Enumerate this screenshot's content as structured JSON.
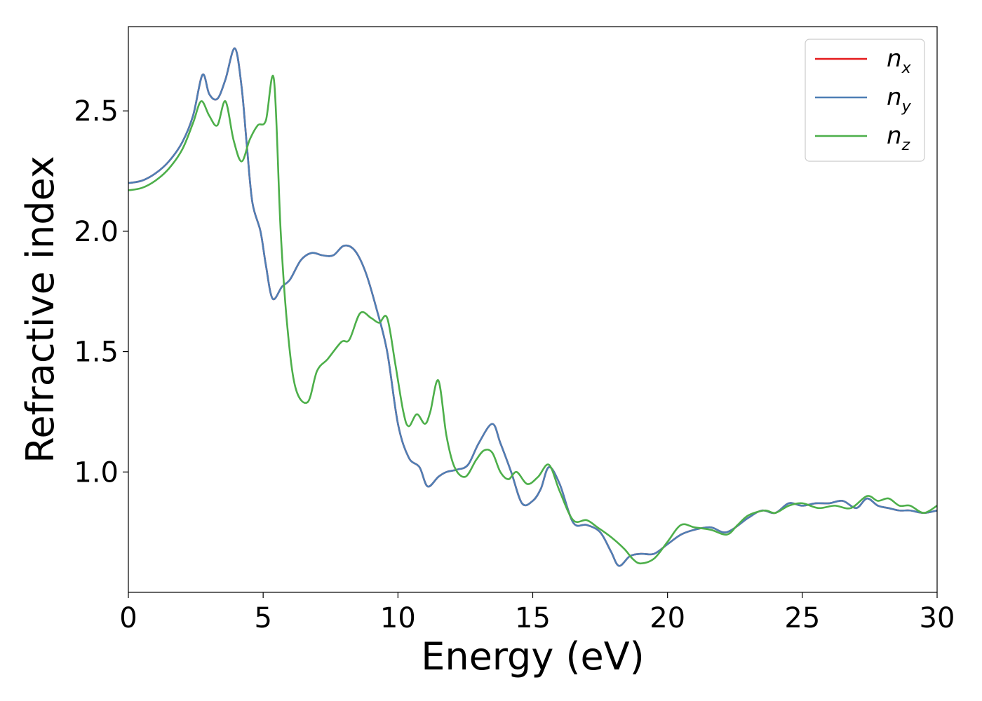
{
  "chart_data": {
    "type": "line",
    "title": "",
    "xlabel": "Energy (eV)",
    "ylabel": "Refractive index",
    "xlim": [
      0,
      30
    ],
    "ylim": [
      0.5,
      2.85
    ],
    "xticks": [
      0,
      5,
      10,
      15,
      20,
      25,
      30
    ],
    "xtick_labels": [
      "0",
      "5",
      "10",
      "15",
      "20",
      "25",
      "30"
    ],
    "yticks": [
      1.0,
      1.5,
      2.0,
      2.5
    ],
    "ytick_labels": [
      "1.0",
      "1.5",
      "2.0",
      "2.5"
    ],
    "grid": false,
    "legend_position": "top-right",
    "series": [
      {
        "name": "n_x",
        "label_main": "n",
        "label_sub": "x",
        "color": "#e41a1c",
        "x": [
          0,
          0.5,
          1.0,
          1.5,
          2.0,
          2.4,
          2.75,
          3.0,
          3.3,
          3.6,
          3.95,
          4.2,
          4.4,
          4.6,
          4.9,
          5.1,
          5.35,
          5.7,
          6.0,
          6.4,
          6.8,
          7.2,
          7.6,
          8.0,
          8.4,
          8.8,
          9.2,
          9.6,
          10.0,
          10.4,
          10.8,
          11.1,
          11.5,
          11.8,
          12.2,
          12.6,
          13.0,
          13.5,
          13.8,
          14.2,
          14.6,
          15.0,
          15.3,
          15.6,
          16.0,
          16.5,
          17.0,
          17.5,
          17.9,
          18.2,
          18.6,
          19.0,
          19.5,
          20.0,
          20.5,
          21.0,
          21.6,
          22.2,
          23.0,
          23.5,
          24.0,
          24.5,
          25.0,
          25.5,
          26.0,
          26.5,
          27.0,
          27.4,
          27.8,
          28.2,
          28.6,
          29.0,
          29.5,
          30.0
        ],
        "y": [
          2.2,
          2.21,
          2.24,
          2.29,
          2.37,
          2.48,
          2.65,
          2.57,
          2.55,
          2.63,
          2.76,
          2.6,
          2.35,
          2.12,
          2.0,
          1.86,
          1.72,
          1.77,
          1.8,
          1.88,
          1.91,
          1.9,
          1.9,
          1.94,
          1.92,
          1.83,
          1.68,
          1.5,
          1.2,
          1.06,
          1.02,
          0.94,
          0.98,
          1.0,
          1.01,
          1.03,
          1.12,
          1.2,
          1.12,
          1.0,
          0.87,
          0.88,
          0.93,
          1.02,
          0.95,
          0.79,
          0.78,
          0.75,
          0.67,
          0.61,
          0.65,
          0.66,
          0.66,
          0.7,
          0.74,
          0.76,
          0.77,
          0.75,
          0.81,
          0.84,
          0.83,
          0.87,
          0.86,
          0.87,
          0.87,
          0.88,
          0.85,
          0.89,
          0.86,
          0.85,
          0.84,
          0.84,
          0.83,
          0.84
        ]
      },
      {
        "name": "n_y",
        "label_main": "n",
        "label_sub": "y",
        "color": "#4e7fb5",
        "x": [
          0,
          0.5,
          1.0,
          1.5,
          2.0,
          2.4,
          2.75,
          3.0,
          3.3,
          3.6,
          3.95,
          4.2,
          4.4,
          4.6,
          4.9,
          5.1,
          5.35,
          5.7,
          6.0,
          6.4,
          6.8,
          7.2,
          7.6,
          8.0,
          8.4,
          8.8,
          9.2,
          9.6,
          10.0,
          10.4,
          10.8,
          11.1,
          11.5,
          11.8,
          12.2,
          12.6,
          13.0,
          13.5,
          13.8,
          14.2,
          14.6,
          15.0,
          15.3,
          15.6,
          16.0,
          16.5,
          17.0,
          17.5,
          17.9,
          18.2,
          18.6,
          19.0,
          19.5,
          20.0,
          20.5,
          21.0,
          21.6,
          22.2,
          23.0,
          23.5,
          24.0,
          24.5,
          25.0,
          25.5,
          26.0,
          26.5,
          27.0,
          27.4,
          27.8,
          28.2,
          28.6,
          29.0,
          29.5,
          30.0
        ],
        "y": [
          2.2,
          2.21,
          2.24,
          2.29,
          2.37,
          2.48,
          2.65,
          2.57,
          2.55,
          2.63,
          2.76,
          2.6,
          2.35,
          2.12,
          2.0,
          1.86,
          1.72,
          1.77,
          1.8,
          1.88,
          1.91,
          1.9,
          1.9,
          1.94,
          1.92,
          1.83,
          1.68,
          1.5,
          1.2,
          1.06,
          1.02,
          0.94,
          0.98,
          1.0,
          1.01,
          1.03,
          1.12,
          1.2,
          1.12,
          1.0,
          0.87,
          0.88,
          0.93,
          1.02,
          0.95,
          0.79,
          0.78,
          0.75,
          0.67,
          0.61,
          0.65,
          0.66,
          0.66,
          0.7,
          0.74,
          0.76,
          0.77,
          0.75,
          0.81,
          0.84,
          0.83,
          0.87,
          0.86,
          0.87,
          0.87,
          0.88,
          0.85,
          0.89,
          0.86,
          0.85,
          0.84,
          0.84,
          0.83,
          0.84
        ]
      },
      {
        "name": "n_z",
        "label_main": "n",
        "label_sub": "z",
        "color": "#4daf4a",
        "x": [
          0,
          0.5,
          1.0,
          1.5,
          2.0,
          2.4,
          2.7,
          3.0,
          3.3,
          3.6,
          3.9,
          4.2,
          4.5,
          4.8,
          5.1,
          5.4,
          5.65,
          5.9,
          6.2,
          6.65,
          7.0,
          7.4,
          7.9,
          8.2,
          8.6,
          9.0,
          9.3,
          9.6,
          9.9,
          10.2,
          10.4,
          10.7,
          11.0,
          11.2,
          11.5,
          11.8,
          12.1,
          12.5,
          12.9,
          13.2,
          13.5,
          13.8,
          14.1,
          14.4,
          14.8,
          15.2,
          15.6,
          16.0,
          16.5,
          17.0,
          17.4,
          17.9,
          18.4,
          18.7,
          19.0,
          19.5,
          20.0,
          20.5,
          21.0,
          21.6,
          22.2,
          22.6,
          23.0,
          23.6,
          24.0,
          24.5,
          25.0,
          25.6,
          26.2,
          26.8,
          27.4,
          27.8,
          28.2,
          28.6,
          29.0,
          29.5,
          30.0
        ],
        "y": [
          2.17,
          2.18,
          2.21,
          2.26,
          2.34,
          2.45,
          2.54,
          2.48,
          2.44,
          2.54,
          2.38,
          2.29,
          2.38,
          2.44,
          2.46,
          2.63,
          2.0,
          1.6,
          1.35,
          1.29,
          1.42,
          1.47,
          1.54,
          1.55,
          1.66,
          1.64,
          1.62,
          1.64,
          1.45,
          1.25,
          1.19,
          1.24,
          1.2,
          1.25,
          1.38,
          1.15,
          1.02,
          0.98,
          1.05,
          1.09,
          1.08,
          1.0,
          0.97,
          1.0,
          0.95,
          0.98,
          1.03,
          0.92,
          0.8,
          0.8,
          0.77,
          0.73,
          0.68,
          0.64,
          0.62,
          0.64,
          0.71,
          0.78,
          0.77,
          0.76,
          0.74,
          0.78,
          0.82,
          0.84,
          0.83,
          0.86,
          0.87,
          0.85,
          0.86,
          0.85,
          0.9,
          0.88,
          0.89,
          0.86,
          0.86,
          0.83,
          0.86
        ]
      }
    ]
  }
}
